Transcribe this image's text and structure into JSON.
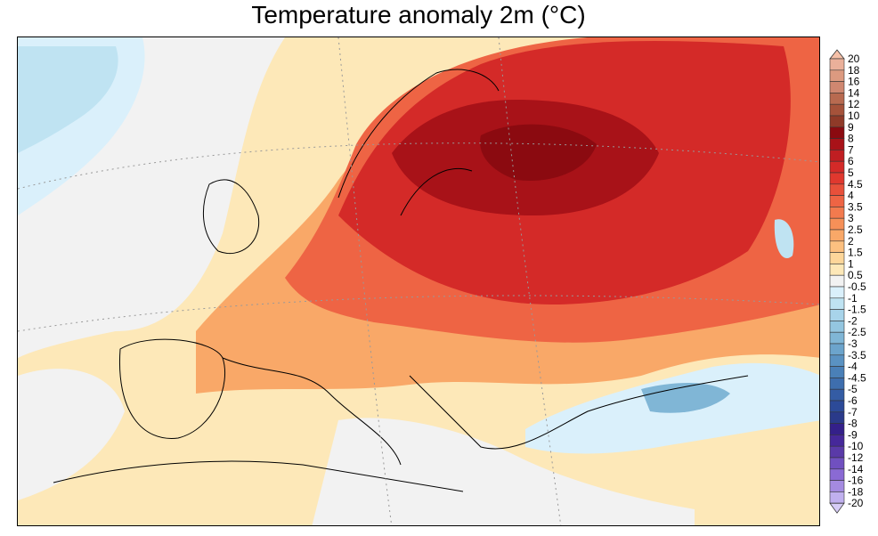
{
  "title": "Temperature anomaly 2m (°C)",
  "colorbar": {
    "labels": [
      "20",
      "18",
      "16",
      "14",
      "12",
      "10",
      "9",
      "8",
      "7",
      "6",
      "5",
      "4.5",
      "4",
      "3.5",
      "3",
      "2.5",
      "2",
      "1.5",
      "1",
      "0.5",
      "-0.5",
      "-1",
      "-1.5",
      "-2",
      "-2.5",
      "-3",
      "-3.5",
      "-4",
      "-4.5",
      "-5",
      "-6",
      "-7",
      "-8",
      "-9",
      "-10",
      "-12",
      "-14",
      "-16",
      "-18",
      "-20"
    ],
    "colors": [
      "#f5c0a8",
      "#eab09a",
      "#dc9a80",
      "#cf8770",
      "#b86a50",
      "#a5523a",
      "#8f3a28",
      "#8b0a10",
      "#a81218",
      "#c01e22",
      "#d42a28",
      "#e0382e",
      "#e8503a",
      "#ee6444",
      "#f27a4e",
      "#f69058",
      "#f9a868",
      "#fcc080",
      "#fdd69a",
      "#fde8b8",
      "#f2f2f2",
      "#daf0fb",
      "#bfe3f2",
      "#a8d4ea",
      "#94c6e0",
      "#80b6d6",
      "#6ca4cc",
      "#5a92c2",
      "#4a80b8",
      "#3e6eae",
      "#345ca4",
      "#2c4a98",
      "#2a3a8a",
      "#34208a",
      "#46289a",
      "#5a3aa8",
      "#7050c0",
      "#8a6ad4",
      "#a48ae0",
      "#c0b0ee",
      "#d6ccf6"
    ]
  }
}
